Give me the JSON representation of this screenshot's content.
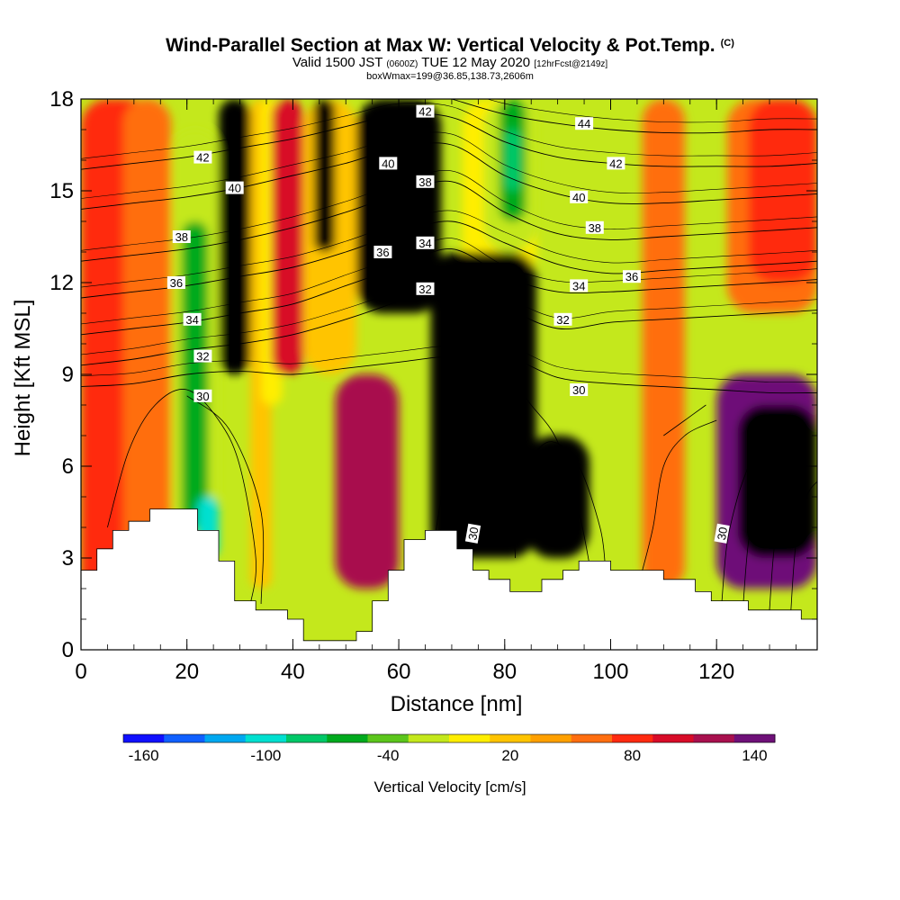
{
  "title": {
    "main": "Wind-Parallel Section at Max W: Vertical Velocity & Pot.Temp.",
    "copyright": "(C)",
    "valid_prefix": "Valid 1500 JST",
    "valid_utc": "(0600Z)",
    "valid_date": "TUE 12 May 2020",
    "forecast": "[12hrFcst@2149z]",
    "box_info": "boxWmax=199@36.85,138.73,2606m"
  },
  "chart_data": {
    "type": "heatmap",
    "xlabel": "Distance [nm]",
    "ylabel": "Height [Kft MSL]",
    "xlim": [
      0,
      139
    ],
    "ylim": [
      0,
      18
    ],
    "x_ticks": [
      "0",
      "20",
      "40",
      "60",
      "80",
      "100",
      "120"
    ],
    "y_ticks": [
      "0",
      "3",
      "6",
      "9",
      "12",
      "15",
      "18"
    ],
    "colorbar": {
      "label": "Vertical Velocity [cm/s]",
      "tick_labels": [
        "-160",
        "-100",
        "-40",
        "20",
        "80",
        "140"
      ],
      "colors": [
        "#1010ff",
        "#1060ff",
        "#00a8f0",
        "#00e0d0",
        "#00c868",
        "#00aa1e",
        "#5cc61c",
        "#c4e81c",
        "#ffee00",
        "#ffc400",
        "#ffa000",
        "#ff6e10",
        "#ff2a10",
        "#d80c28",
        "#a8104e",
        "#6e1078"
      ]
    },
    "velocity_cells": [
      {
        "x": [
          0,
          14
        ],
        "y": [
          0,
          18
        ],
        "w": 5
      },
      {
        "x": [
          8,
          17
        ],
        "y": [
          3,
          18
        ],
        "w": 4
      },
      {
        "x": [
          17,
          26
        ],
        "y": [
          4,
          17
        ],
        "w": 0
      },
      {
        "x": [
          19,
          24
        ],
        "y": [
          4,
          14
        ],
        "w": -2
      },
      {
        "x": [
          22,
          26
        ],
        "y": [
          3,
          5
        ],
        "w": -4
      },
      {
        "x": [
          26,
          32
        ],
        "y": [
          9,
          18
        ],
        "w": 9
      },
      {
        "x": [
          27,
          30
        ],
        "y": [
          11,
          18
        ],
        "w": 11
      },
      {
        "x": [
          32,
          36
        ],
        "y": [
          2,
          18
        ],
        "w": 2
      },
      {
        "x": [
          34,
          38
        ],
        "y": [
          8,
          18
        ],
        "w": 1
      },
      {
        "x": [
          36,
          42
        ],
        "y": [
          9,
          18
        ],
        "w": 6
      },
      {
        "x": [
          42,
          52
        ],
        "y": [
          9,
          18
        ],
        "w": 2
      },
      {
        "x": [
          44,
          48
        ],
        "y": [
          13,
          18
        ],
        "w": 10
      },
      {
        "x": [
          52,
          68
        ],
        "y": [
          11,
          18
        ],
        "w": 10
      },
      {
        "x": [
          56,
          64
        ],
        "y": [
          13,
          18
        ],
        "w": 11
      },
      {
        "x": [
          48,
          60
        ],
        "y": [
          2,
          9
        ],
        "w": 7
      },
      {
        "x": [
          72,
          86
        ],
        "y": [
          12,
          18
        ],
        "w": 1
      },
      {
        "x": [
          76,
          86
        ],
        "y": [
          13,
          18
        ],
        "w": 0
      },
      {
        "x": [
          79,
          84
        ],
        "y": [
          14,
          18
        ],
        "w": -2
      },
      {
        "x": [
          80,
          83
        ],
        "y": [
          15,
          17
        ],
        "w": -3
      },
      {
        "x": [
          66,
          86
        ],
        "y": [
          3,
          13
        ],
        "w": 9
      },
      {
        "x": [
          68,
          84
        ],
        "y": [
          3,
          12
        ],
        "w": 10
      },
      {
        "x": [
          70,
          80
        ],
        "y": [
          5,
          11
        ],
        "w": 11
      },
      {
        "x": [
          72,
          79
        ],
        "y": [
          6,
          11
        ],
        "w": 12
      },
      {
        "x": [
          73,
          78
        ],
        "y": [
          7,
          10
        ],
        "w": 13
      },
      {
        "x": [
          74,
          77
        ],
        "y": [
          7,
          10
        ],
        "w": 14
      },
      {
        "x": [
          84,
          96
        ],
        "y": [
          3,
          7
        ],
        "w": 10
      },
      {
        "x": [
          86,
          94
        ],
        "y": [
          4,
          6
        ],
        "w": 11
      },
      {
        "x": [
          106,
          114
        ],
        "y": [
          2,
          18
        ],
        "w": 4
      },
      {
        "x": [
          122,
          139
        ],
        "y": [
          11,
          18
        ],
        "w": 4
      },
      {
        "x": [
          126,
          139
        ],
        "y": [
          12,
          18
        ],
        "w": 5
      },
      {
        "x": [
          120,
          139
        ],
        "y": [
          2,
          9
        ],
        "w": 8
      },
      {
        "x": [
          124,
          139
        ],
        "y": [
          3,
          8
        ],
        "w": 9
      },
      {
        "x": [
          128,
          139
        ],
        "y": [
          4,
          7
        ],
        "w": 10
      }
    ],
    "terrain_profile": [
      [
        0,
        2.6
      ],
      [
        3,
        2.6
      ],
      [
        3,
        3.3
      ],
      [
        6,
        3.3
      ],
      [
        6,
        3.9
      ],
      [
        9,
        3.9
      ],
      [
        9,
        4.2
      ],
      [
        13,
        4.2
      ],
      [
        13,
        4.6
      ],
      [
        22,
        4.6
      ],
      [
        22,
        3.9
      ],
      [
        26,
        3.9
      ],
      [
        26,
        2.9
      ],
      [
        29,
        2.9
      ],
      [
        29,
        1.6
      ],
      [
        33,
        1.6
      ],
      [
        33,
        1.3
      ],
      [
        39,
        1.3
      ],
      [
        39,
        1.0
      ],
      [
        42,
        1.0
      ],
      [
        42,
        0.3
      ],
      [
        52,
        0.3
      ],
      [
        52,
        0.6
      ],
      [
        55,
        0.6
      ],
      [
        55,
        1.6
      ],
      [
        58,
        1.6
      ],
      [
        58,
        2.6
      ],
      [
        61,
        2.6
      ],
      [
        61,
        3.6
      ],
      [
        65,
        3.6
      ],
      [
        65,
        3.9
      ],
      [
        71,
        3.9
      ],
      [
        71,
        3.3
      ],
      [
        74,
        3.3
      ],
      [
        74,
        2.6
      ],
      [
        77,
        2.6
      ],
      [
        77,
        2.3
      ],
      [
        81,
        2.3
      ],
      [
        81,
        1.9
      ],
      [
        87,
        1.9
      ],
      [
        87,
        2.3
      ],
      [
        91,
        2.3
      ],
      [
        91,
        2.6
      ],
      [
        94,
        2.6
      ],
      [
        94,
        2.9
      ],
      [
        100,
        2.9
      ],
      [
        100,
        2.6
      ],
      [
        110,
        2.6
      ],
      [
        110,
        2.3
      ],
      [
        116,
        2.3
      ],
      [
        116,
        1.9
      ],
      [
        119,
        1.9
      ],
      [
        119,
        1.6
      ],
      [
        126,
        1.6
      ],
      [
        126,
        1.3
      ],
      [
        136,
        1.3
      ],
      [
        136,
        1.0
      ],
      [
        139,
        1.0
      ]
    ],
    "theta_contours": [
      {
        "label": "30",
        "pts": [
          [
            0,
            8.6
          ],
          [
            10,
            8.7
          ],
          [
            20,
            9.0
          ],
          [
            30,
            9.1
          ],
          [
            40,
            9.0
          ],
          [
            50,
            9.2
          ],
          [
            60,
            9.4
          ],
          [
            70,
            9.6
          ],
          [
            80,
            9.6
          ],
          [
            90,
            8.9
          ],
          [
            100,
            8.7
          ],
          [
            110,
            8.6
          ],
          [
            120,
            8.5
          ],
          [
            130,
            8.4
          ],
          [
            139,
            8.4
          ]
        ],
        "label_at": [
          [
            23,
            8.3
          ],
          [
            94,
            8.5
          ]
        ]
      },
      {
        "label": "32",
        "pts": [
          [
            0,
            9.3
          ],
          [
            10,
            9.5
          ],
          [
            20,
            9.8
          ],
          [
            30,
            10.0
          ],
          [
            40,
            10.3
          ],
          [
            50,
            10.8
          ],
          [
            60,
            11.4
          ],
          [
            70,
            12.1
          ],
          [
            80,
            11.2
          ],
          [
            90,
            10.5
          ],
          [
            100,
            10.7
          ],
          [
            110,
            10.8
          ],
          [
            120,
            10.9
          ],
          [
            130,
            11.0
          ],
          [
            139,
            11.1
          ]
        ],
        "label_at": [
          [
            23,
            9.6
          ],
          [
            65,
            11.8
          ],
          [
            91,
            10.8
          ]
        ]
      },
      {
        "label": "34",
        "pts": [
          [
            0,
            10.3
          ],
          [
            10,
            10.5
          ],
          [
            20,
            10.7
          ],
          [
            30,
            11.0
          ],
          [
            40,
            11.3
          ],
          [
            50,
            11.9
          ],
          [
            60,
            12.5
          ],
          [
            70,
            13.1
          ],
          [
            80,
            12.2
          ],
          [
            90,
            11.7
          ],
          [
            100,
            11.7
          ],
          [
            110,
            11.8
          ],
          [
            120,
            11.9
          ],
          [
            130,
            12.0
          ],
          [
            139,
            12.1
          ]
        ],
        "label_at": [
          [
            21,
            10.8
          ],
          [
            65,
            13.3
          ],
          [
            94,
            11.9
          ]
        ]
      },
      {
        "label": "36",
        "pts": [
          [
            0,
            11.5
          ],
          [
            10,
            11.7
          ],
          [
            20,
            11.9
          ],
          [
            30,
            12.2
          ],
          [
            40,
            12.5
          ],
          [
            50,
            13.0
          ],
          [
            60,
            13.6
          ],
          [
            70,
            14.0
          ],
          [
            80,
            13.3
          ],
          [
            90,
            12.6
          ],
          [
            100,
            12.3
          ],
          [
            110,
            12.4
          ],
          [
            120,
            12.5
          ],
          [
            130,
            12.6
          ],
          [
            139,
            12.7
          ]
        ],
        "label_at": [
          [
            18,
            12.0
          ],
          [
            57,
            13.0
          ],
          [
            104,
            12.2
          ]
        ]
      },
      {
        "label": "38",
        "pts": [
          [
            0,
            12.7
          ],
          [
            10,
            12.9
          ],
          [
            20,
            13.1
          ],
          [
            30,
            13.4
          ],
          [
            40,
            13.8
          ],
          [
            50,
            14.3
          ],
          [
            60,
            14.9
          ],
          [
            70,
            15.3
          ],
          [
            80,
            14.3
          ],
          [
            90,
            13.6
          ],
          [
            100,
            13.4
          ],
          [
            110,
            13.5
          ],
          [
            120,
            13.6
          ],
          [
            130,
            13.7
          ],
          [
            139,
            13.8
          ]
        ],
        "label_at": [
          [
            19,
            13.5
          ],
          [
            65,
            15.3
          ],
          [
            97,
            13.8
          ]
        ]
      },
      {
        "label": "40",
        "pts": [
          [
            0,
            14.4
          ],
          [
            10,
            14.6
          ],
          [
            20,
            14.8
          ],
          [
            30,
            15.1
          ],
          [
            40,
            15.5
          ],
          [
            50,
            15.9
          ],
          [
            60,
            16.4
          ],
          [
            70,
            16.5
          ],
          [
            80,
            15.5
          ],
          [
            90,
            14.9
          ],
          [
            100,
            14.6
          ],
          [
            110,
            14.6
          ],
          [
            120,
            14.7
          ],
          [
            130,
            14.8
          ],
          [
            139,
            14.9
          ]
        ],
        "label_at": [
          [
            29,
            15.1
          ],
          [
            58,
            15.9
          ],
          [
            94,
            14.8
          ]
        ]
      },
      {
        "label": "42",
        "pts": [
          [
            0,
            15.7
          ],
          [
            10,
            15.9
          ],
          [
            20,
            16.1
          ],
          [
            30,
            16.4
          ],
          [
            40,
            16.7
          ],
          [
            50,
            17.1
          ],
          [
            60,
            17.5
          ],
          [
            70,
            17.4
          ],
          [
            80,
            16.6
          ],
          [
            90,
            16.1
          ],
          [
            100,
            15.9
          ],
          [
            110,
            15.8
          ],
          [
            120,
            15.8
          ],
          [
            130,
            15.8
          ],
          [
            139,
            15.9
          ]
        ],
        "label_at": [
          [
            23,
            16.1
          ],
          [
            65,
            17.6
          ],
          [
            101,
            15.9
          ]
        ]
      },
      {
        "label": "44",
        "pts": [
          [
            70,
            18.0
          ],
          [
            80,
            17.5
          ],
          [
            90,
            17.2
          ],
          [
            100,
            17.0
          ],
          [
            110,
            16.9
          ],
          [
            120,
            16.9
          ],
          [
            130,
            17.0
          ],
          [
            139,
            17.0
          ]
        ],
        "label_at": [
          [
            95,
            17.2
          ]
        ]
      }
    ],
    "extra_contours": [
      [
        [
          5,
          4.0
        ],
        [
          9,
          6.5
        ],
        [
          14,
          8.0
        ],
        [
          20,
          8.5
        ],
        [
          26,
          7.5
        ],
        [
          30,
          6.0
        ],
        [
          33,
          3.0
        ],
        [
          32,
          1.5
        ]
      ],
      [
        [
          20,
          8.3
        ],
        [
          28,
          7.2
        ],
        [
          34,
          4.5
        ],
        [
          34,
          1.5
        ]
      ],
      [
        [
          8,
          0
        ],
        [
          5,
          0
        ]
      ],
      [
        [
          67,
          3.9
        ],
        [
          69,
          6.0
        ],
        [
          71,
          7.8
        ],
        [
          72,
          8.8
        ],
        [
          75,
          9.0
        ],
        [
          80,
          9.0
        ],
        [
          85,
          8.0
        ],
        [
          90,
          6.8
        ],
        [
          94,
          4.5
        ],
        [
          96,
          2.8
        ]
      ],
      [
        [
          82,
          3.0
        ],
        [
          82,
          4.5
        ],
        [
          85,
          6.2
        ],
        [
          89,
          6.8
        ],
        [
          94,
          6.0
        ],
        [
          98,
          4.0
        ],
        [
          99,
          2.7
        ]
      ],
      [
        [
          121,
          1.6
        ],
        [
          122,
          3.5
        ],
        [
          124,
          5.0
        ],
        [
          126,
          6.0
        ],
        [
          127,
          6.5
        ]
      ],
      [
        [
          125,
          1.4
        ],
        [
          126,
          3.5
        ],
        [
          128,
          5.5
        ],
        [
          131,
          6.5
        ]
      ],
      [
        [
          130,
          1.3
        ],
        [
          131,
          3.5
        ],
        [
          133,
          5.0
        ],
        [
          136,
          6.0
        ]
      ],
      [
        [
          134,
          1.2
        ],
        [
          135,
          3.5
        ],
        [
          137,
          5.0
        ],
        [
          139,
          5.5
        ]
      ],
      [
        [
          120,
          7.5
        ],
        [
          114,
          7.0
        ],
        [
          110,
          6.0
        ],
        [
          108,
          4.0
        ],
        [
          106,
          2.6
        ]
      ],
      [
        [
          118,
          8.0
        ],
        [
          114,
          7.5
        ],
        [
          110,
          7.0
        ]
      ]
    ]
  }
}
